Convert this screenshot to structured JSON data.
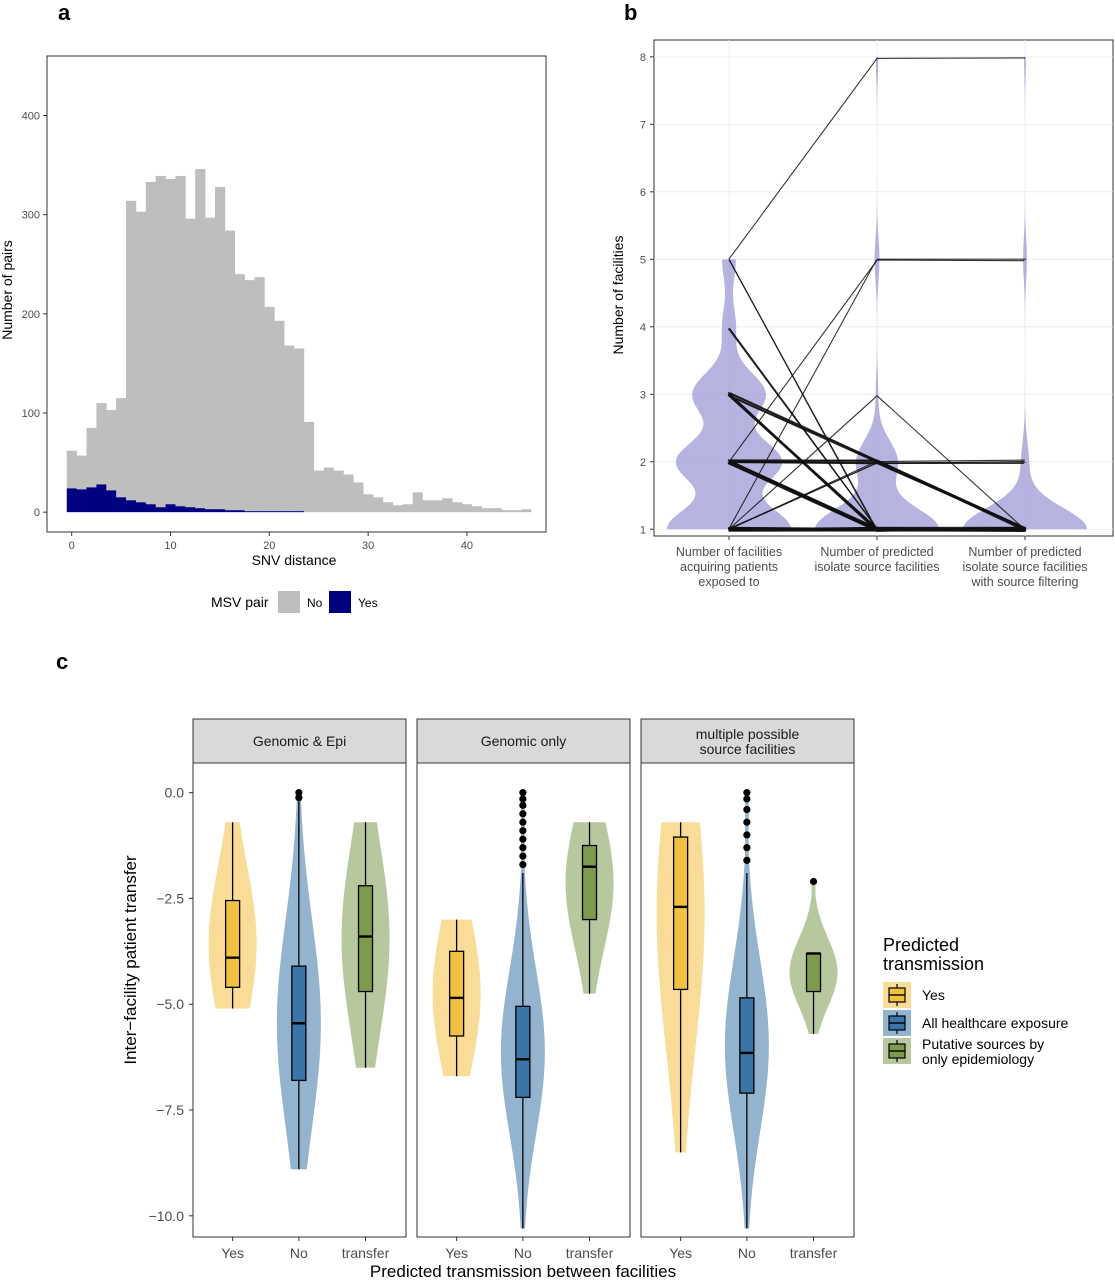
{
  "panels": {
    "a": "a",
    "b": "b",
    "c": "c"
  },
  "chart_data": [
    {
      "id": "a",
      "type": "bar",
      "subtype": "stacked-histogram",
      "xlabel": "SNV distance",
      "ylabel": "Number of pairs",
      "xlim": [
        -2.5,
        48
      ],
      "ylim": [
        -20,
        460
      ],
      "xticks": [
        0,
        10,
        20,
        30,
        40
      ],
      "yticks": [
        0,
        100,
        200,
        300,
        400
      ],
      "bin_width": 1,
      "bins_start": [
        -0.5,
        0.5,
        1.5,
        2.5,
        3.5,
        4.5,
        5.5,
        6.5,
        7.5,
        8.5,
        9.5,
        10.5,
        11.5,
        12.5,
        13.5,
        14.5,
        15.5,
        16.5,
        17.5,
        18.5,
        19.5,
        20.5,
        21.5,
        22.5,
        23.5,
        24.5,
        25.5,
        26.5,
        27.5,
        28.5,
        29.5,
        30.5,
        31.5,
        32.5,
        33.5,
        34.5,
        35.5,
        36.5,
        37.5,
        38.5,
        39.5,
        40.5,
        41.5,
        42.5,
        43.5,
        44.5,
        45.5
      ],
      "series": [
        {
          "name": "No",
          "color": "#bebebe",
          "values": [
            38,
            34,
            60,
            82,
            81,
            100,
            302,
            293,
            325,
            334,
            328,
            333,
            291,
            342,
            294,
            325,
            282,
            238,
            233,
            236,
            206,
            192,
            167,
            164,
            91,
            42,
            45,
            42,
            38,
            30,
            18,
            15,
            10,
            7,
            8,
            20,
            12,
            12,
            14,
            10,
            8,
            6,
            4,
            4,
            2,
            2,
            3
          ]
        },
        {
          "name": "Yes",
          "color": "#000080",
          "values": [
            24,
            23,
            25,
            28,
            22,
            15,
            12,
            10,
            8,
            5,
            8,
            6,
            5,
            4,
            3,
            3,
            2,
            2,
            1,
            1,
            1,
            1,
            1,
            1,
            0,
            0,
            0,
            0,
            0,
            0,
            0,
            0,
            0,
            0,
            0,
            0,
            0,
            0,
            0,
            0,
            0,
            0,
            0,
            0,
            0,
            0,
            0
          ]
        }
      ],
      "legend": {
        "title": "MSV pair",
        "position": "bottom",
        "entries": [
          "No",
          "Yes"
        ]
      }
    },
    {
      "id": "b",
      "type": "line",
      "subtype": "violin-with-paired-lines",
      "ylabel": "Number of facilities",
      "ylim": [
        0.9,
        8.25
      ],
      "yticks": [
        1,
        2,
        3,
        4,
        5,
        6,
        7,
        8
      ],
      "categories": [
        "Number of facilities\nacquiring patients\nexposed to",
        "Number of predicted\nisolate source facilities",
        "Number of predicted\nisolate source facilities\nwith source filtering"
      ],
      "violin_color": "#9e9ad6",
      "paths": [
        {
          "values": [
            5,
            8,
            8
          ],
          "count": 1
        },
        {
          "values": [
            5,
            1,
            1
          ],
          "count": 2
        },
        {
          "values": [
            4,
            1,
            1
          ],
          "count": 3
        },
        {
          "values": [
            3,
            1,
            1
          ],
          "count": 10
        },
        {
          "values": [
            3,
            2,
            1
          ],
          "count": 6
        },
        {
          "values": [
            2,
            1,
            1
          ],
          "count": 14
        },
        {
          "values": [
            2,
            2,
            2
          ],
          "count": 4
        },
        {
          "values": [
            2,
            2,
            1
          ],
          "count": 4
        },
        {
          "values": [
            1,
            1,
            1
          ],
          "count": 22
        },
        {
          "values": [
            1,
            5,
            5
          ],
          "count": 1
        },
        {
          "values": [
            1,
            2,
            1
          ],
          "count": 3
        },
        {
          "values": [
            1,
            3,
            1
          ],
          "count": 1
        },
        {
          "values": [
            2,
            5,
            5
          ],
          "count": 1
        }
      ]
    },
    {
      "id": "c",
      "type": "violin",
      "subtype": "faceted-violin-boxplot",
      "xlabel": "Predicted transmission between facilities",
      "ylabel": "Inter−facility patient transfer",
      "ylim": [
        -10.5,
        0.7
      ],
      "yticks": [
        0.0,
        -2.5,
        -5.0,
        -7.5,
        -10.0
      ],
      "ytick_labels": [
        "0.0",
        "−2.5",
        "−5.0",
        "−7.5",
        "−10.0"
      ],
      "categories": [
        "Yes",
        "No",
        "transfer"
      ],
      "facets": [
        {
          "title_lines": [
            "Genomic & Epi"
          ],
          "groups": [
            {
              "color": "#f2c042",
              "vmin": -5.1,
              "vmax": -0.7,
              "q1": -4.6,
              "med": -3.9,
              "q3": -2.55,
              "wlo": -5.1,
              "whi": -0.7,
              "out": []
            },
            {
              "color": "#3a74a8",
              "vmin": -8.9,
              "vmax": 0.0,
              "q1": -6.8,
              "med": -5.45,
              "q3": -4.1,
              "wlo": -8.9,
              "whi": -0.2,
              "out": [
                -0.12,
                0.0
              ]
            },
            {
              "color": "#7d9a4f",
              "vmin": -6.5,
              "vmax": -0.7,
              "q1": -4.7,
              "med": -3.4,
              "q3": -2.2,
              "wlo": -6.5,
              "whi": -0.7,
              "out": []
            }
          ]
        },
        {
          "title_lines": [
            "Genomic only"
          ],
          "groups": [
            {
              "color": "#f2c042",
              "vmin": -6.7,
              "vmax": -3.0,
              "q1": -5.75,
              "med": -4.85,
              "q3": -3.75,
              "wlo": -6.7,
              "whi": -3.0,
              "out": []
            },
            {
              "color": "#3a74a8",
              "vmin": -10.3,
              "vmax": -0.1,
              "q1": -7.2,
              "med": -6.3,
              "q3": -5.05,
              "wlo": -10.3,
              "whi": -1.9,
              "out": [
                -1.7,
                -1.5,
                -1.3,
                -1.1,
                -0.9,
                -0.7,
                -0.5,
                -0.3,
                -0.15,
                0.0
              ]
            },
            {
              "color": "#7d9a4f",
              "vmin": -4.75,
              "vmax": -0.7,
              "q1": -3.0,
              "med": -1.75,
              "q3": -1.25,
              "wlo": -4.75,
              "whi": -0.7,
              "out": []
            }
          ]
        },
        {
          "title_lines": [
            "multiple possible",
            "source facilities"
          ],
          "groups": [
            {
              "color": "#f2c042",
              "vmin": -8.5,
              "vmax": -0.7,
              "q1": -4.65,
              "med": -2.7,
              "q3": -1.05,
              "wlo": -8.5,
              "whi": -0.7,
              "out": []
            },
            {
              "color": "#3a74a8",
              "vmin": -10.3,
              "vmax": -0.1,
              "q1": -7.1,
              "med": -6.15,
              "q3": -4.85,
              "wlo": -10.3,
              "whi": -1.9,
              "out": [
                -1.6,
                -1.3,
                -1.0,
                -0.7,
                -0.4,
                -0.15,
                0.0
              ]
            },
            {
              "color": "#7d9a4f",
              "vmin": -5.7,
              "vmax": -2.1,
              "q1": -4.7,
              "med": -3.8,
              "q3": -3.8,
              "wlo": -5.7,
              "whi": -3.8,
              "out": [
                -2.1
              ]
            }
          ]
        }
      ],
      "legend": {
        "title_lines": [
          "Predicted",
          "transmission"
        ],
        "position": "right",
        "entries": [
          {
            "lines": [
              "Yes"
            ],
            "color": "#f2c042"
          },
          {
            "lines": [
              "All healthcare exposure"
            ],
            "color": "#3a74a8"
          },
          {
            "lines": [
              "Putative sources by",
              "only epidemiology"
            ],
            "color": "#7d9a4f"
          }
        ]
      }
    }
  ]
}
